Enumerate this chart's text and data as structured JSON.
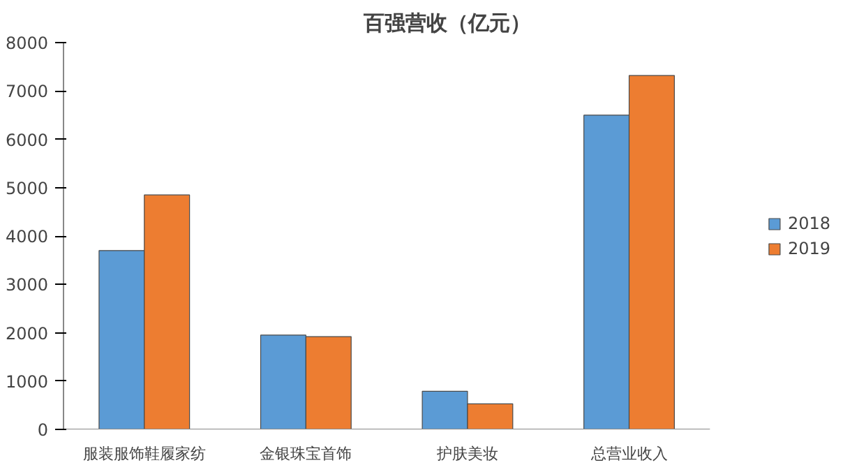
{
  "chart_data": {
    "type": "bar",
    "title": "百强营收（亿元）",
    "categories": [
      "服装服饰鞋履家纺",
      "金银珠宝首饰",
      "护肤美妆",
      "总营业收入"
    ],
    "series": [
      {
        "name": "2018",
        "color": "#5b9bd5",
        "values": [
          3700,
          1950,
          790,
          6500
        ]
      },
      {
        "name": "2019",
        "color": "#ed7d31",
        "values": [
          4850,
          1920,
          530,
          7320
        ]
      }
    ],
    "ylim": [
      0,
      8000
    ],
    "yticks": [
      0,
      1000,
      2000,
      3000,
      4000,
      5000,
      6000,
      7000,
      8000
    ],
    "grid": false,
    "legend": "right"
  }
}
